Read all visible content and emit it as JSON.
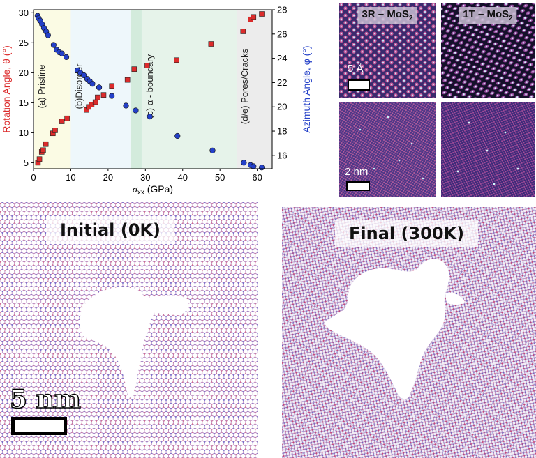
{
  "chart_data": {
    "type": "scatter",
    "xlabel": "σ_xx (GPa)",
    "xlabel_main": "σ",
    "xlabel_sub": "xx",
    "xlabel_rest": " (GPa)",
    "ylabel_left": "Rotation Angle, θ (°)",
    "ylabel_right": "Azimuth Angle, φ (°)",
    "xlim": [
      0,
      64
    ],
    "ylim_left": [
      4,
      30.5
    ],
    "ylim_right": [
      14.9,
      28
    ],
    "xticks": [
      0,
      10,
      20,
      30,
      40,
      50,
      60
    ],
    "yticks_left": [
      5,
      10,
      15,
      20,
      25,
      30
    ],
    "yticks_right": [
      16,
      18,
      20,
      22,
      24,
      26,
      28
    ],
    "regions": [
      {
        "label": "(a) Pristine",
        "x0": 0,
        "x1": 10,
        "color": "#fbfbe4"
      },
      {
        "label": "(b)Disorder",
        "x0": 10,
        "x1": 26,
        "color": "#eef7fb"
      },
      {
        "label": "",
        "x0": 26,
        "x1": 29,
        "color": "#d3ebdc"
      },
      {
        "label": "(c) α - boundary",
        "x0": 29,
        "x1": 54.5,
        "color": "#e6f3ea"
      },
      {
        "label": "(d/e) Pores/Cracks",
        "x0": 54.5,
        "x1": 64,
        "color": "#ececec"
      }
    ],
    "series": [
      {
        "axis": "left",
        "color": "#dc2b2b",
        "marker": "square",
        "x": [
          1.2,
          1.6,
          2.2,
          2.6,
          3.3,
          5.2,
          5.8,
          7.6,
          9.0,
          14.2,
          14.8,
          15.6,
          16.6,
          17.2,
          18.8,
          21.0,
          25.2,
          27.0,
          30.5,
          38.4,
          47.6,
          56.2,
          58.2,
          59.0,
          61.2
        ],
        "y": [
          5.0,
          5.6,
          6.8,
          7.1,
          8.1,
          9.9,
          10.4,
          11.9,
          12.4,
          13.8,
          14.3,
          14.7,
          15.1,
          15.9,
          16.3,
          17.8,
          18.8,
          20.6,
          21.2,
          22.1,
          24.8,
          26.9,
          28.9,
          29.3,
          29.8
        ]
      },
      {
        "axis": "right",
        "color": "#2440c8",
        "marker": "circle",
        "x": [
          1.1,
          1.4,
          1.8,
          2.3,
          2.8,
          3.4,
          3.9,
          5.4,
          6.2,
          6.9,
          7.6,
          8.8,
          11.8,
          12.6,
          13.5,
          14.4,
          15.1,
          15.8,
          17.6,
          21.0,
          24.8,
          27.4,
          31.2,
          38.6,
          48.0,
          56.4,
          58.2,
          59.0,
          61.2
        ],
        "y": [
          27.5,
          27.3,
          27.1,
          26.8,
          26.5,
          26.2,
          25.9,
          25.1,
          24.7,
          24.5,
          24.4,
          24.1,
          23.0,
          22.8,
          22.6,
          22.3,
          22.1,
          21.9,
          21.6,
          20.9,
          20.1,
          19.7,
          19.2,
          17.6,
          16.4,
          15.4,
          15.2,
          15.1,
          15.0
        ]
      }
    ]
  },
  "stm": {
    "panels": [
      {
        "label": "3R – MoS",
        "sub": "2",
        "scale": "5 Å"
      },
      {
        "label": "1T – MoS",
        "sub": "2",
        "scale": ""
      },
      {
        "label": "",
        "sub": "",
        "scale": "2 nm"
      },
      {
        "label": "",
        "sub": "",
        "scale": ""
      }
    ]
  },
  "md": {
    "left_title": "Initial (0K)",
    "right_title": "Final (300K)",
    "scale_label": "5 nm"
  }
}
